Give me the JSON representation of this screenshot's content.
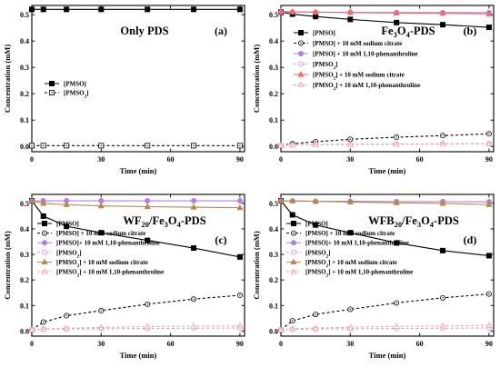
{
  "chart_data": [
    {
      "panel": "(a)",
      "type": "line",
      "title": [
        {
          "t": "Only PDS"
        }
      ],
      "xlabel": "Time (min)",
      "ylabel": "Concentration (mM)",
      "xlim": [
        0,
        92
      ],
      "ylim": [
        -0.02,
        0.535
      ],
      "xticks": [
        0,
        30,
        60,
        90
      ],
      "yticks": [
        0.0,
        0.1,
        0.2,
        0.3,
        0.4,
        0.5
      ],
      "legend_position": "middle-left",
      "series": [
        {
          "name": [
            {
              "t": "[PMSO]"
            }
          ],
          "color": "#000000",
          "dash": "solid",
          "marker": "square-filled",
          "x": [
            0,
            5,
            15,
            30,
            50,
            70,
            90
          ],
          "y": [
            0.52,
            0.52,
            0.52,
            0.52,
            0.52,
            0.52,
            0.52
          ]
        },
        {
          "name": [
            {
              "t": "[PMSO"
            },
            {
              "t": "2",
              "sub": true
            },
            {
              "t": "]"
            }
          ],
          "color": "#000000",
          "dash": "dash",
          "marker": "square-dot",
          "x": [
            0,
            5,
            15,
            30,
            50,
            70,
            90
          ],
          "y": [
            0.003,
            0.003,
            0.003,
            0.003,
            0.003,
            0.003,
            0.003
          ]
        }
      ]
    },
    {
      "panel": "(b)",
      "type": "line",
      "title": [
        {
          "t": "Fe"
        },
        {
          "t": "3",
          "sub": true
        },
        {
          "t": "O"
        },
        {
          "t": "4",
          "sub": true
        },
        {
          "t": "-PDS"
        }
      ],
      "xlabel": "Time (min)",
      "ylabel": "Concentration (mM)",
      "xlim": [
        0,
        92
      ],
      "ylim": [
        -0.02,
        0.535
      ],
      "xticks": [
        0,
        30,
        60,
        90
      ],
      "yticks": [
        0.0,
        0.1,
        0.2,
        0.3,
        0.4,
        0.5
      ],
      "legend_position": "middle-left",
      "series": [
        {
          "name": [
            {
              "t": "[PMSO]"
            }
          ],
          "color": "#000000",
          "dash": "solid",
          "marker": "square-filled",
          "x": [
            0,
            5,
            15,
            30,
            50,
            70,
            90
          ],
          "y": [
            0.51,
            0.502,
            0.493,
            0.482,
            0.47,
            0.462,
            0.452
          ]
        },
        {
          "name": [
            {
              "t": "[PMSO] + 10 mM  sodium citrate"
            }
          ],
          "color": "#000000",
          "dash": "dash",
          "marker": "circle-dot",
          "x": [
            0,
            5,
            15,
            30,
            50,
            70,
            90
          ],
          "y": [
            0.004,
            0.01,
            0.018,
            0.027,
            0.035,
            0.041,
            0.048
          ]
        },
        {
          "name": [
            {
              "t": "[PMSO] + 10 mM  1,10-phenanthroline"
            }
          ],
          "color": "#b57edc",
          "dash": "solid",
          "marker": "circle-filled",
          "x": [
            0,
            5,
            15,
            30,
            50,
            70,
            90
          ],
          "y": [
            0.51,
            0.51,
            0.509,
            0.509,
            0.508,
            0.508,
            0.508
          ]
        },
        {
          "name": [
            {
              "t": "[PMSO"
            },
            {
              "t": "2",
              "sub": true
            },
            {
              "t": "]"
            }
          ],
          "color": "#d49ae0",
          "dash": "dash",
          "marker": "circle-dot",
          "x": [
            0,
            5,
            15,
            30,
            50,
            70,
            90
          ],
          "y": [
            0.005,
            0.006,
            0.007,
            0.008,
            0.009,
            0.01,
            0.011
          ]
        },
        {
          "name": [
            {
              "t": "[PMSO"
            },
            {
              "t": "2",
              "sub": true
            },
            {
              "t": "]  + 10 mM  sodium citrate"
            }
          ],
          "color": "#f26b6b",
          "dash": "solid",
          "marker": "triangle-filled",
          "x": [
            0,
            5,
            15,
            30,
            50,
            70,
            90
          ],
          "y": [
            0.513,
            0.511,
            0.51,
            0.508,
            0.506,
            0.505,
            0.503
          ]
        },
        {
          "name": [
            {
              "t": "[PMSO"
            },
            {
              "t": "2",
              "sub": true
            },
            {
              "t": "] + 10 mM  1,10-phenanthroline"
            }
          ],
          "color": "#f5a0a0",
          "dash": "dash",
          "marker": "triangle-dot",
          "x": [
            0,
            5,
            15,
            30,
            50,
            70,
            90
          ],
          "y": [
            0.004,
            0.005,
            0.006,
            0.007,
            0.008,
            0.009,
            0.01
          ]
        }
      ]
    },
    {
      "panel": "(c)",
      "type": "line",
      "title": [
        {
          "t": "WF"
        },
        {
          "t": "20",
          "sub": true
        },
        {
          "t": "/Fe"
        },
        {
          "t": "3",
          "sub": true
        },
        {
          "t": "O"
        },
        {
          "t": "4",
          "sub": true
        },
        {
          "t": "-PDS"
        }
      ],
      "xlabel": "Time (min)",
      "ylabel": "Concentration (mM)",
      "xlim": [
        0,
        92
      ],
      "ylim": [
        -0.02,
        0.535
      ],
      "xticks": [
        0,
        30,
        60,
        90
      ],
      "yticks": [
        0.0,
        0.1,
        0.2,
        0.3,
        0.4,
        0.5
      ],
      "legend_position": "middle-left",
      "series": [
        {
          "name": [
            {
              "t": "[PMSO]"
            }
          ],
          "color": "#000000",
          "dash": "solid",
          "marker": "square-filled",
          "x": [
            0,
            5,
            15,
            30,
            50,
            70,
            90
          ],
          "y": [
            0.51,
            0.45,
            0.41,
            0.385,
            0.355,
            0.325,
            0.29
          ]
        },
        {
          "name": [
            {
              "t": "[PMSO] + 10 mM  sodium citrate"
            }
          ],
          "color": "#000000",
          "dash": "dash",
          "marker": "circle-dot",
          "x": [
            0,
            5,
            15,
            30,
            50,
            70,
            90
          ],
          "y": [
            0.005,
            0.035,
            0.06,
            0.08,
            0.105,
            0.125,
            0.14
          ]
        },
        {
          "name": [
            {
              "t": "[PMSO]+ 10 mM  1,10-phenanthroline"
            }
          ],
          "color": "#b57edc",
          "dash": "solid",
          "marker": "circle-filled",
          "x": [
            0,
            5,
            15,
            30,
            50,
            70,
            90
          ],
          "y": [
            0.51,
            0.51,
            0.51,
            0.51,
            0.51,
            0.51,
            0.51
          ]
        },
        {
          "name": [
            {
              "t": "[PMSO"
            },
            {
              "t": "2",
              "sub": true
            },
            {
              "t": "]"
            }
          ],
          "color": "#d49ae0",
          "dash": "dash",
          "marker": "circle-dot",
          "x": [
            0,
            5,
            15,
            30,
            50,
            70,
            90
          ],
          "y": [
            0.005,
            0.007,
            0.008,
            0.009,
            0.01,
            0.011,
            0.012
          ]
        },
        {
          "name": [
            {
              "t": "[PMSO"
            },
            {
              "t": "2",
              "sub": true
            },
            {
              "t": "]  + 10 mM  sodium citrate"
            }
          ],
          "color": "#b8864a",
          "dash": "solid",
          "marker": "triangle-filled",
          "x": [
            0,
            5,
            15,
            30,
            50,
            70,
            90
          ],
          "y": [
            0.51,
            0.5,
            0.495,
            0.49,
            0.487,
            0.485,
            0.483
          ]
        },
        {
          "name": [
            {
              "t": "[PMSO"
            },
            {
              "t": "2",
              "sub": true
            },
            {
              "t": "]  + 10 mM  1,10-phenanthroline"
            }
          ],
          "color": "#f5a0a0",
          "dash": "dash",
          "marker": "triangle-dot",
          "x": [
            0,
            5,
            15,
            30,
            50,
            70,
            90
          ],
          "y": [
            0.005,
            0.008,
            0.011,
            0.014,
            0.017,
            0.019,
            0.02
          ]
        }
      ]
    },
    {
      "panel": "(d)",
      "type": "line",
      "title": [
        {
          "t": "WFB"
        },
        {
          "t": "20",
          "sub": true
        },
        {
          "t": "/Fe"
        },
        {
          "t": "3",
          "sub": true
        },
        {
          "t": "O"
        },
        {
          "t": "4",
          "sub": true
        },
        {
          "t": "-PDS"
        }
      ],
      "xlabel": "Time (min)",
      "ylabel": "Concentration (mM)",
      "xlim": [
        0,
        92
      ],
      "ylim": [
        -0.02,
        0.535
      ],
      "xticks": [
        0,
        30,
        60,
        90
      ],
      "yticks": [
        0.0,
        0.1,
        0.2,
        0.3,
        0.4,
        0.5
      ],
      "legend_position": "middle-left",
      "series": [
        {
          "name": [
            {
              "t": "[PMSO]"
            }
          ],
          "color": "#000000",
          "dash": "solid",
          "marker": "square-filled",
          "x": [
            0,
            5,
            15,
            30,
            50,
            70,
            90
          ],
          "y": [
            0.51,
            0.455,
            0.415,
            0.385,
            0.345,
            0.315,
            0.295
          ]
        },
        {
          "name": [
            {
              "t": "[PMSO] + 10 mM  sodium citrate"
            }
          ],
          "color": "#000000",
          "dash": "dash",
          "marker": "circle-dot",
          "x": [
            0,
            5,
            15,
            30,
            50,
            70,
            90
          ],
          "y": [
            0.005,
            0.04,
            0.065,
            0.085,
            0.11,
            0.13,
            0.145
          ]
        },
        {
          "name": [
            {
              "t": "[PMSO]+ 10 mM  1,10-phenanthroline"
            }
          ],
          "color": "#b57edc",
          "dash": "solid",
          "marker": "circle-filled",
          "x": [
            0,
            5,
            15,
            30,
            50,
            70,
            90
          ],
          "y": [
            0.51,
            0.509,
            0.508,
            0.508,
            0.507,
            0.507,
            0.506
          ]
        },
        {
          "name": [
            {
              "t": "[PMSO"
            },
            {
              "t": "2",
              "sub": true
            },
            {
              "t": "]"
            }
          ],
          "color": "#d49ae0",
          "dash": "dash",
          "marker": "circle-dot",
          "x": [
            0,
            5,
            15,
            30,
            50,
            70,
            90
          ],
          "y": [
            0.005,
            0.007,
            0.008,
            0.009,
            0.01,
            0.011,
            0.012
          ]
        },
        {
          "name": [
            {
              "t": "[PMSO"
            },
            {
              "t": "2",
              "sub": true
            },
            {
              "t": "]  + 10 mM  sodium citrate"
            }
          ],
          "color": "#b8864a",
          "dash": "solid",
          "marker": "triangle-filled",
          "x": [
            0,
            5,
            15,
            30,
            50,
            70,
            90
          ],
          "y": [
            0.51,
            0.51,
            0.508,
            0.505,
            0.502,
            0.5,
            0.495
          ]
        },
        {
          "name": [
            {
              "t": "[PMSO"
            },
            {
              "t": "2",
              "sub": true
            },
            {
              "t": "]  + 10 mM  1,10-phenanthroline"
            }
          ],
          "color": "#f5a0a0",
          "dash": "dash",
          "marker": "triangle-dot",
          "x": [
            0,
            5,
            15,
            30,
            50,
            70,
            90
          ],
          "y": [
            0.005,
            0.009,
            0.012,
            0.015,
            0.018,
            0.02,
            0.022
          ]
        }
      ]
    }
  ]
}
